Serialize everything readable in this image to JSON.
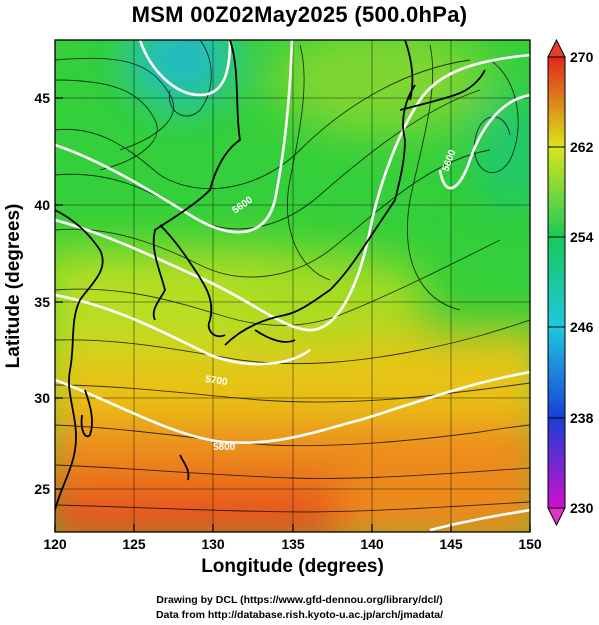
{
  "title": "MSM 00Z02May2025 (500.0hPa)",
  "xlabel": "Longitude (degrees)",
  "ylabel": "Latitude  (degrees)",
  "credit_drawing": "Drawing by DCL (https://www.gfd-dennou.org/library/dcl/)",
  "credit_data": "Data from http://database.rish.kyoto-u.ac.jp/arch/jmadata/",
  "colors": {
    "low": "#cc11cc",
    "c238": "#1a3fd6",
    "c246": "#1fc7e0",
    "c254": "#19c95a",
    "c262": "#d9e61a",
    "high": "#e0281a"
  },
  "chart_data": {
    "type": "heatmap",
    "variable": "temperature with wind streamlines and geopotential height contours",
    "xlim": [
      120,
      150
    ],
    "ylim": [
      22.5,
      47.5
    ],
    "xticks": [
      120,
      125,
      130,
      135,
      140,
      145,
      150
    ],
    "yticks": [
      25,
      30,
      35,
      40,
      45
    ],
    "colorbar": {
      "min": 230,
      "max": 270,
      "ticks": [
        230,
        238,
        246,
        254,
        262,
        270
      ]
    },
    "contour_labels": [
      "5700",
      "5800",
      "5600",
      "5600"
    ],
    "grid": true
  }
}
